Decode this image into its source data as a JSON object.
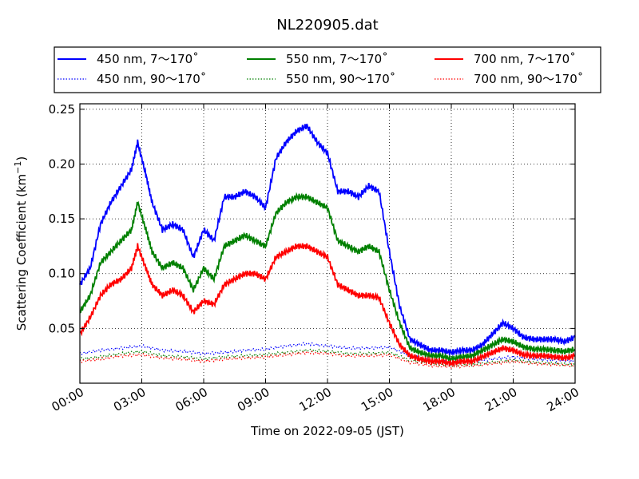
{
  "chart_data": {
    "type": "line",
    "title": "NL220905.dat",
    "xlabel": "Time on 2022-09-05 (JST)",
    "ylabel": "Scattering Coefficient (km",
    "ylabel_sup": "−1",
    "ylabel_close": ")",
    "xlim": [
      0,
      24
    ],
    "ylim": [
      0,
      0.255
    ],
    "x_ticks": [
      0,
      3,
      6,
      9,
      12,
      15,
      18,
      21,
      24
    ],
    "x_tick_labels": [
      "00:00",
      "03:00",
      "06:00",
      "09:00",
      "12:00",
      "15:00",
      "18:00",
      "21:00",
      "24:00"
    ],
    "y_ticks": [
      0.05,
      0.1,
      0.15,
      0.2,
      0.25
    ],
    "y_tick_labels": [
      "0.05",
      "0.10",
      "0.15",
      "0.20",
      "0.25"
    ],
    "grid": true,
    "legend_placement": "above plot, 3 columns",
    "series": [
      {
        "name": "450 nm, 7～170˚",
        "color": "#0000ff",
        "style": "solid",
        "x": [
          0,
          0.5,
          1,
          1.5,
          2,
          2.5,
          2.8,
          3.2,
          3.5,
          4,
          4.5,
          5,
          5.5,
          6,
          6.5,
          7,
          7.5,
          8,
          8.5,
          9,
          9.5,
          10,
          10.5,
          11,
          11.5,
          12,
          12.5,
          13,
          13.5,
          14,
          14.5,
          15,
          15.5,
          16,
          16.5,
          17,
          17.5,
          18,
          18.5,
          19,
          19.5,
          20,
          20.5,
          21,
          21.5,
          22,
          22.5,
          23,
          23.5,
          24
        ],
        "values": [
          0.09,
          0.105,
          0.145,
          0.165,
          0.18,
          0.195,
          0.22,
          0.19,
          0.165,
          0.14,
          0.145,
          0.14,
          0.115,
          0.14,
          0.13,
          0.17,
          0.17,
          0.175,
          0.17,
          0.16,
          0.205,
          0.22,
          0.23,
          0.235,
          0.22,
          0.21,
          0.175,
          0.175,
          0.17,
          0.18,
          0.175,
          0.12,
          0.07,
          0.04,
          0.035,
          0.03,
          0.03,
          0.028,
          0.03,
          0.03,
          0.035,
          0.045,
          0.055,
          0.05,
          0.042,
          0.04,
          0.04,
          0.04,
          0.038,
          0.042
        ]
      },
      {
        "name": "450 nm, 90～170˚",
        "color": "#0000ff",
        "style": "dotted",
        "x": [
          0,
          1,
          2,
          3,
          4,
          5,
          6,
          7,
          8,
          9,
          10,
          11,
          12,
          13,
          14,
          15,
          16,
          17,
          18,
          19,
          20,
          21,
          22,
          23,
          24
        ],
        "values": [
          0.027,
          0.03,
          0.032,
          0.034,
          0.03,
          0.029,
          0.027,
          0.028,
          0.03,
          0.031,
          0.034,
          0.036,
          0.034,
          0.032,
          0.032,
          0.033,
          0.025,
          0.021,
          0.019,
          0.02,
          0.022,
          0.024,
          0.022,
          0.021,
          0.02
        ]
      },
      {
        "name": "550 nm, 7～170˚",
        "color": "#008000",
        "style": "solid",
        "x": [
          0,
          0.5,
          1,
          1.5,
          2,
          2.5,
          2.8,
          3.2,
          3.5,
          4,
          4.5,
          5,
          5.5,
          6,
          6.5,
          7,
          7.5,
          8,
          8.5,
          9,
          9.5,
          10,
          10.5,
          11,
          11.5,
          12,
          12.5,
          13,
          13.5,
          14,
          14.5,
          15,
          15.5,
          16,
          16.5,
          17,
          17.5,
          18,
          18.5,
          19,
          19.5,
          20,
          20.5,
          21,
          21.5,
          22,
          22.5,
          23,
          23.5,
          24
        ],
        "values": [
          0.065,
          0.08,
          0.11,
          0.12,
          0.13,
          0.14,
          0.165,
          0.14,
          0.12,
          0.105,
          0.11,
          0.105,
          0.085,
          0.105,
          0.095,
          0.125,
          0.13,
          0.135,
          0.13,
          0.125,
          0.155,
          0.165,
          0.17,
          0.17,
          0.165,
          0.16,
          0.13,
          0.125,
          0.12,
          0.125,
          0.12,
          0.085,
          0.055,
          0.032,
          0.028,
          0.025,
          0.025,
          0.022,
          0.024,
          0.025,
          0.03,
          0.035,
          0.04,
          0.038,
          0.033,
          0.031,
          0.031,
          0.03,
          0.029,
          0.031
        ]
      },
      {
        "name": "550 nm, 90～170˚",
        "color": "#008000",
        "style": "dotted",
        "x": [
          0,
          1,
          2,
          3,
          4,
          5,
          6,
          7,
          8,
          9,
          10,
          11,
          12,
          13,
          14,
          15,
          16,
          17,
          18,
          19,
          20,
          21,
          22,
          23,
          24
        ],
        "values": [
          0.022,
          0.024,
          0.027,
          0.029,
          0.025,
          0.024,
          0.022,
          0.024,
          0.025,
          0.026,
          0.028,
          0.03,
          0.029,
          0.027,
          0.027,
          0.028,
          0.021,
          0.018,
          0.016,
          0.017,
          0.019,
          0.021,
          0.019,
          0.018,
          0.017
        ]
      },
      {
        "name": "700 nm, 7～170˚",
        "color": "#ff0000",
        "style": "solid",
        "x": [
          0,
          0.5,
          1,
          1.5,
          2,
          2.5,
          2.8,
          3.2,
          3.5,
          4,
          4.5,
          5,
          5.5,
          6,
          6.5,
          7,
          7.5,
          8,
          8.5,
          9,
          9.5,
          10,
          10.5,
          11,
          11.5,
          12,
          12.5,
          13,
          13.5,
          14,
          14.5,
          15,
          15.5,
          16,
          16.5,
          17,
          17.5,
          18,
          18.5,
          19,
          19.5,
          20,
          20.5,
          21,
          21.5,
          22,
          22.5,
          23,
          23.5,
          24
        ],
        "values": [
          0.045,
          0.06,
          0.08,
          0.09,
          0.095,
          0.105,
          0.125,
          0.105,
          0.09,
          0.08,
          0.085,
          0.08,
          0.065,
          0.075,
          0.072,
          0.09,
          0.095,
          0.1,
          0.1,
          0.095,
          0.115,
          0.12,
          0.125,
          0.125,
          0.12,
          0.115,
          0.09,
          0.085,
          0.08,
          0.08,
          0.078,
          0.055,
          0.035,
          0.025,
          0.022,
          0.02,
          0.02,
          0.018,
          0.02,
          0.02,
          0.024,
          0.028,
          0.032,
          0.03,
          0.026,
          0.025,
          0.025,
          0.024,
          0.023,
          0.025
        ]
      },
      {
        "name": "700 nm, 90～170˚",
        "color": "#ff0000",
        "style": "dotted",
        "x": [
          0,
          1,
          2,
          3,
          4,
          5,
          6,
          7,
          8,
          9,
          10,
          11,
          12,
          13,
          14,
          15,
          16,
          17,
          18,
          19,
          20,
          21,
          22,
          23,
          24
        ],
        "values": [
          0.02,
          0.022,
          0.025,
          0.026,
          0.023,
          0.022,
          0.02,
          0.022,
          0.023,
          0.024,
          0.026,
          0.028,
          0.027,
          0.025,
          0.025,
          0.026,
          0.019,
          0.016,
          0.015,
          0.016,
          0.018,
          0.02,
          0.018,
          0.017,
          0.016
        ]
      }
    ]
  }
}
